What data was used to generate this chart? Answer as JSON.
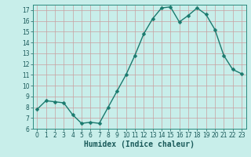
{
  "title": "",
  "xlabel": "Humidex (Indice chaleur)",
  "x": [
    0,
    1,
    2,
    3,
    4,
    5,
    6,
    7,
    8,
    9,
    10,
    11,
    12,
    13,
    14,
    15,
    16,
    17,
    18,
    19,
    20,
    21,
    22,
    23
  ],
  "y": [
    7.8,
    8.6,
    8.5,
    8.4,
    7.3,
    6.5,
    6.6,
    6.5,
    8.0,
    9.5,
    11.0,
    12.8,
    14.8,
    16.2,
    17.2,
    17.3,
    15.9,
    16.5,
    17.2,
    16.6,
    15.2,
    12.8,
    11.5,
    11.1
  ],
  "line_color": "#1a7a6e",
  "bg_color": "#c8eeea",
  "grid_major_color": "#c8a0a0",
  "grid_minor_color": "#dcc0c0",
  "ylim": [
    6,
    17.5
  ],
  "yticks": [
    6,
    7,
    8,
    9,
    10,
    11,
    12,
    13,
    14,
    15,
    16,
    17
  ],
  "xlim": [
    -0.5,
    23.5
  ],
  "xticks": [
    0,
    1,
    2,
    3,
    4,
    5,
    6,
    7,
    8,
    9,
    10,
    11,
    12,
    13,
    14,
    15,
    16,
    17,
    18,
    19,
    20,
    21,
    22,
    23
  ],
  "tick_fontsize": 5.5,
  "xlabel_fontsize": 7,
  "marker": "D",
  "marker_size": 2.5,
  "line_width": 1.0,
  "spine_color": "#2a8a7e"
}
